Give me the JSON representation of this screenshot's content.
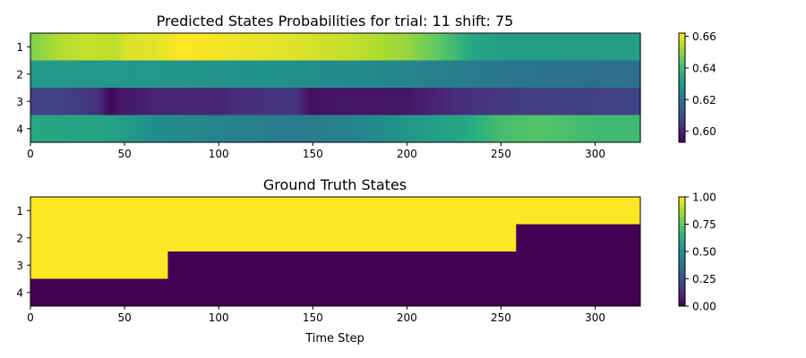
{
  "chart_data": [
    {
      "type": "heatmap",
      "title": "Predicted States Probabilities for trial: 11 shift: 75",
      "xlabel": "",
      "ylabel": "",
      "xlim": [
        0,
        324
      ],
      "x_ticks": [
        0,
        50,
        100,
        150,
        200,
        250,
        300
      ],
      "rows": [
        "1",
        "2",
        "3",
        "4"
      ],
      "colormap": "viridis",
      "color_range": [
        0.593,
        0.662
      ],
      "colorbar_ticks": [
        "0.60",
        "0.62",
        "0.64",
        "0.66"
      ],
      "colorbar_tick_values": [
        0.6,
        0.62,
        0.64,
        0.66
      ],
      "series": [
        {
          "name": "1",
          "points": [
            [
              0,
              0.648
            ],
            [
              8,
              0.651
            ],
            [
              17,
              0.654
            ],
            [
              30,
              0.656
            ],
            [
              45,
              0.655
            ],
            [
              50,
              0.658
            ],
            [
              65,
              0.659
            ],
            [
              80,
              0.662
            ],
            [
              100,
              0.661
            ],
            [
              148,
              0.658
            ],
            [
              175,
              0.655
            ],
            [
              200,
              0.651
            ],
            [
              215,
              0.645
            ],
            [
              225,
              0.64
            ],
            [
              235,
              0.634
            ],
            [
              250,
              0.631
            ],
            [
              300,
              0.631
            ],
            [
              324,
              0.632
            ]
          ]
        },
        {
          "name": "2",
          "points": [
            [
              0,
              0.63
            ],
            [
              80,
              0.629
            ],
            [
              150,
              0.627
            ],
            [
              200,
              0.624
            ],
            [
              250,
              0.62
            ],
            [
              300,
              0.618
            ],
            [
              324,
              0.618
            ]
          ]
        },
        {
          "name": "3",
          "points": [
            [
              0,
              0.607
            ],
            [
              20,
              0.606
            ],
            [
              35,
              0.603
            ],
            [
              43,
              0.594
            ],
            [
              48,
              0.598
            ],
            [
              55,
              0.598
            ],
            [
              65,
              0.6
            ],
            [
              100,
              0.6
            ],
            [
              110,
              0.602
            ],
            [
              140,
              0.604
            ],
            [
              148,
              0.596
            ],
            [
              165,
              0.597
            ],
            [
              200,
              0.597
            ],
            [
              215,
              0.6
            ],
            [
              235,
              0.603
            ],
            [
              260,
              0.605
            ],
            [
              300,
              0.606
            ],
            [
              324,
              0.607
            ]
          ]
        },
        {
          "name": "4",
          "points": [
            [
              0,
              0.634
            ],
            [
              40,
              0.633
            ],
            [
              65,
              0.627
            ],
            [
              100,
              0.624
            ],
            [
              140,
              0.621
            ],
            [
              150,
              0.622
            ],
            [
              175,
              0.624
            ],
            [
              200,
              0.629
            ],
            [
              230,
              0.634
            ],
            [
              250,
              0.641
            ],
            [
              270,
              0.643
            ],
            [
              300,
              0.64
            ],
            [
              324,
              0.64
            ]
          ]
        }
      ]
    },
    {
      "type": "heatmap",
      "title": "Ground Truth States",
      "xlabel": "Time Step",
      "ylabel": "",
      "xlim": [
        0,
        324
      ],
      "x_ticks": [
        0,
        50,
        100,
        150,
        200,
        250,
        300
      ],
      "rows": [
        "1",
        "2",
        "3",
        "4"
      ],
      "colormap": "viridis",
      "color_range": [
        0,
        1
      ],
      "colorbar_ticks": [
        "0.00",
        "0.25",
        "0.50",
        "0.75",
        "1.00"
      ],
      "colorbar_tick_values": [
        0,
        0.25,
        0.5,
        0.75,
        1.0
      ],
      "series": [
        {
          "name": "1",
          "segments": [
            [
              0,
              324,
              1
            ]
          ]
        },
        {
          "name": "2",
          "segments": [
            [
              0,
              258,
              1
            ],
            [
              258,
              324,
              0
            ]
          ]
        },
        {
          "name": "3",
          "segments": [
            [
              0,
              73,
              1
            ],
            [
              73,
              324,
              0
            ]
          ]
        },
        {
          "name": "4",
          "segments": [
            [
              0,
              324,
              0
            ]
          ]
        }
      ]
    }
  ]
}
